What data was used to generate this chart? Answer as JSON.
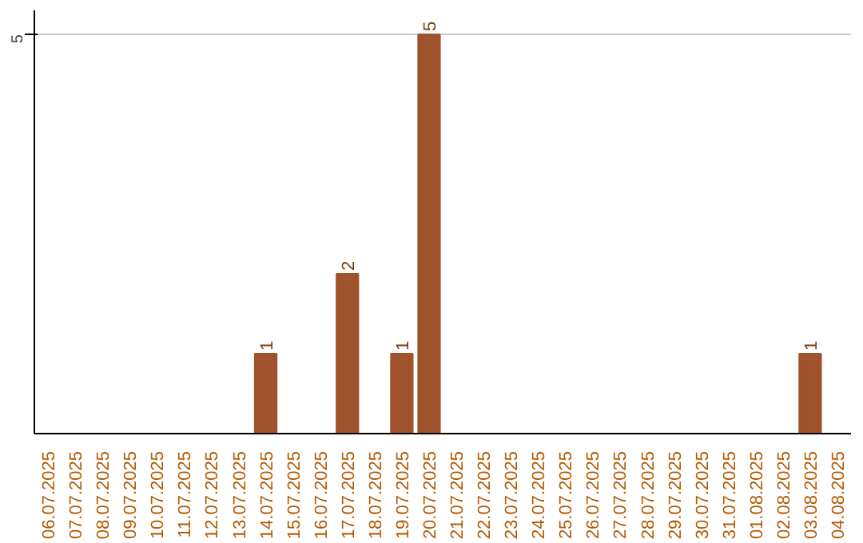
{
  "chart_data": {
    "type": "bar",
    "categories": [
      "06.07.2025",
      "07.07.2025",
      "08.07.2025",
      "09.07.2025",
      "10.07.2025",
      "11.07.2025",
      "12.07.2025",
      "13.07.2025",
      "14.07.2025",
      "15.07.2025",
      "16.07.2025",
      "17.07.2025",
      "18.07.2025",
      "19.07.2025",
      "20.07.2025",
      "21.07.2025",
      "22.07.2025",
      "23.07.2025",
      "24.07.2025",
      "25.07.2025",
      "26.07.2025",
      "27.07.2025",
      "28.07.2025",
      "29.07.2025",
      "30.07.2025",
      "31.07.2025",
      "01.08.2025",
      "02.08.2025",
      "03.08.2025",
      "04.08.2025"
    ],
    "values": [
      0,
      0,
      0,
      0,
      0,
      0,
      0,
      0,
      1,
      0,
      0,
      2,
      0,
      1,
      5,
      0,
      0,
      0,
      0,
      0,
      0,
      0,
      0,
      0,
      0,
      0,
      0,
      0,
      1,
      0
    ],
    "value_labels": [
      null,
      null,
      null,
      null,
      null,
      null,
      null,
      null,
      "1",
      null,
      null,
      "2",
      null,
      "1",
      "5",
      null,
      null,
      null,
      null,
      null,
      null,
      null,
      null,
      null,
      null,
      null,
      null,
      null,
      "1",
      null
    ],
    "color": "#a0522d",
    "ylim": [
      0,
      5.3
    ],
    "yticks": [
      5
    ],
    "grid": "y"
  }
}
